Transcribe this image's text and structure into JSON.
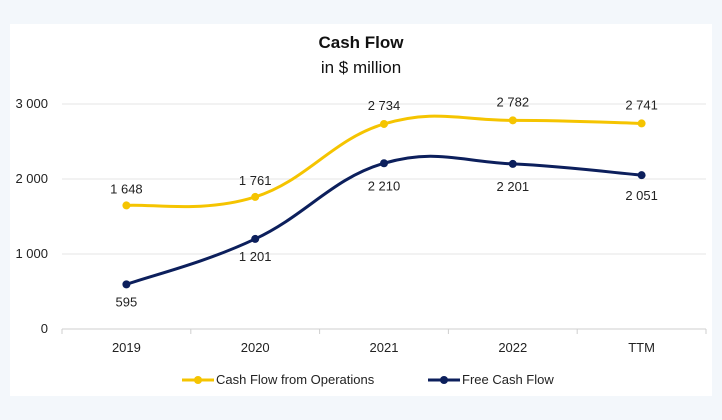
{
  "chart_data": {
    "type": "line",
    "title": "Cash Flow",
    "subtitle": "in $ million",
    "categories": [
      "2019",
      "2020",
      "2021",
      "2022",
      "TTM"
    ],
    "y_ticks": [
      0,
      1000,
      2000,
      3000
    ],
    "y_tick_labels": [
      "0",
      "1 000",
      "2 000",
      "3 000"
    ],
    "ylim": [
      0,
      3000
    ],
    "grid": true,
    "legend": "bottom",
    "series": [
      {
        "name": "Cash Flow from Operations",
        "color": "#f5c400",
        "values": [
          1648,
          1761,
          2734,
          2782,
          2741
        ],
        "labels": [
          "1 648",
          "1 761",
          "2 734",
          "2 782",
          "2 741"
        ]
      },
      {
        "name": "Free Cash Flow",
        "color": "#0c1f5c",
        "values": [
          595,
          1201,
          2210,
          2201,
          2051
        ],
        "labels": [
          "595",
          "1 201",
          "2 210",
          "2 201",
          "2 051"
        ]
      }
    ]
  }
}
